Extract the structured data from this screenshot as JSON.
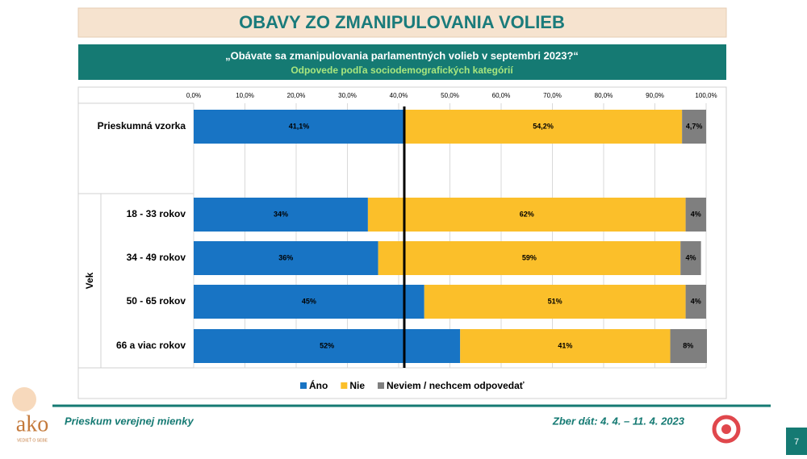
{
  "header": {
    "title": "OBAVY ZO ZMANIPULOVANIA VOLIEB",
    "question": "„Obávate sa zmanipulovania parlamentných volieb v septembri 2023?“",
    "subtitle": "Odpovede podľa sociodemografických kategórií"
  },
  "chart_data": {
    "type": "bar",
    "orientation": "horizontal",
    "stacked": true,
    "categories": [
      "Prieskumná vzorka",
      "18 - 33 rokov",
      "34 - 49 rokov",
      "50 - 65 rokov",
      "66 a viac rokov"
    ],
    "group_label": "Vek",
    "series": [
      {
        "name": "Áno",
        "color": "#1874c4",
        "values": [
          41.1,
          34,
          36,
          45,
          52
        ],
        "value_labels": [
          "41,1%",
          "34%",
          "36%",
          "45%",
          "52%"
        ]
      },
      {
        "name": "Nie",
        "color": "#fbbf2a",
        "values": [
          54.2,
          62,
          59,
          51,
          41
        ],
        "value_labels": [
          "54,2%",
          "62%",
          "59%",
          "51%",
          "41%"
        ]
      },
      {
        "name": "Neviem / nechcem odpovedať",
        "color": "#7f7f7f",
        "values": [
          4.7,
          4,
          4,
          4,
          8
        ],
        "value_labels": [
          "4,7%",
          "4%",
          "4%",
          "4%",
          "8%"
        ]
      }
    ],
    "xlim": [
      0,
      100
    ],
    "xticks": [
      {
        "value": 0,
        "label": "0,0%"
      },
      {
        "value": 10,
        "label": "10,0%"
      },
      {
        "value": 20,
        "label": "20,0%"
      },
      {
        "value": 30,
        "label": "30,0%"
      },
      {
        "value": 40,
        "label": "40,0%"
      },
      {
        "value": 50,
        "label": "50,0%"
      },
      {
        "value": 60,
        "label": "60,0%"
      },
      {
        "value": 70,
        "label": "70,0%"
      },
      {
        "value": 80,
        "label": "80,0%"
      },
      {
        "value": 90,
        "label": "90,0%"
      },
      {
        "value": 100,
        "label": "100,0%"
      }
    ],
    "grid": true,
    "legend": "bottom"
  },
  "footer": {
    "left": "Prieskum verejnej mienky",
    "right": "Zber dát: 4. 4. – 11. 4. 2023",
    "page": "7",
    "logo": "ako",
    "logo_tagline": "VEDIEŤ O SEBE"
  }
}
